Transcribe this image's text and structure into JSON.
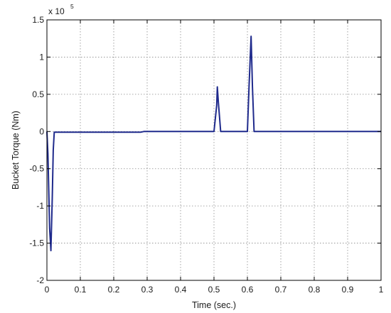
{
  "chart_data": {
    "type": "line",
    "title": "",
    "xlabel": "Time (sec.)",
    "ylabel": "Bucket Torque (Nm)",
    "y_multiplier_base": "x 10",
    "y_multiplier_exponent": "5",
    "xlim": [
      0,
      1
    ],
    "ylim": [
      -2,
      1.5
    ],
    "grid": true,
    "x_ticks": [
      "0",
      "0.1",
      "0.2",
      "0.3",
      "0.4",
      "0.5",
      "0.6",
      "0.7",
      "0.8",
      "0.9",
      "1"
    ],
    "y_ticks": [
      "1.5",
      "1",
      "0.5",
      "0",
      "-0.5",
      "-1",
      "-1.5",
      "-2"
    ],
    "x_tick_values": [
      0,
      0.1,
      0.2,
      0.3,
      0.4,
      0.5,
      0.6,
      0.7,
      0.8,
      0.9,
      1
    ],
    "y_tick_values": [
      1.5,
      1,
      0.5,
      0,
      -0.5,
      -1,
      -1.5,
      -2
    ],
    "series": [
      {
        "color": "#1f2a8c",
        "x": [
          0,
          0.003,
          0.008,
          0.012,
          0.016,
          0.019,
          0.022,
          0.1,
          0.2,
          0.28,
          0.29,
          0.4,
          0.5,
          0.508,
          0.51,
          0.513,
          0.52,
          0.6,
          0.605,
          0.611,
          0.615,
          0.62,
          1.0
        ],
        "y": [
          0,
          -0.3,
          -1.3,
          -1.6,
          -0.9,
          -0.25,
          -0.01,
          -0.01,
          -0.01,
          -0.01,
          0,
          0,
          0,
          0.35,
          0.6,
          0.4,
          0,
          0,
          0.6,
          1.28,
          0.6,
          0,
          0
        ]
      }
    ]
  }
}
